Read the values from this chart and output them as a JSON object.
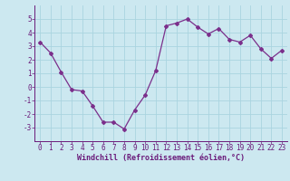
{
  "x": [
    0,
    1,
    2,
    3,
    4,
    5,
    6,
    7,
    8,
    9,
    10,
    11,
    12,
    13,
    14,
    15,
    16,
    17,
    18,
    19,
    20,
    21,
    22,
    23
  ],
  "y": [
    3.3,
    2.5,
    1.1,
    -0.2,
    -0.3,
    -1.4,
    -2.6,
    -2.6,
    -3.1,
    -1.7,
    -0.6,
    1.2,
    4.5,
    4.7,
    5.0,
    4.4,
    3.9,
    4.3,
    3.5,
    3.3,
    3.8,
    2.8,
    2.1,
    2.7
  ],
  "line_color": "#7b2f8b",
  "marker": "D",
  "marker_size": 2.0,
  "linewidth": 0.9,
  "bg_color": "#cce8f0",
  "grid_color": "#aad4e0",
  "xlabel": "Windchill (Refroidissement éolien,°C)",
  "xlabel_color": "#6a1a7a",
  "tick_color": "#6a1a7a",
  "ylim": [
    -4,
    6
  ],
  "xlim": [
    -0.5,
    23.5
  ],
  "yticks": [
    -3,
    -2,
    -1,
    0,
    1,
    2,
    3,
    4,
    5
  ],
  "xticks": [
    0,
    1,
    2,
    3,
    4,
    5,
    6,
    7,
    8,
    9,
    10,
    11,
    12,
    13,
    14,
    15,
    16,
    17,
    18,
    19,
    20,
    21,
    22,
    23
  ],
  "tick_fontsize": 5.5,
  "xlabel_fontsize": 6.0
}
